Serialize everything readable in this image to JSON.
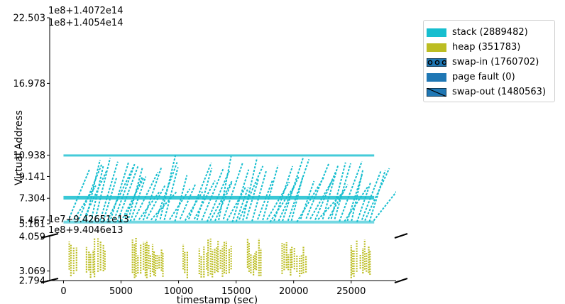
{
  "chart_data": {
    "type": "scatter",
    "xlabel": "timestamp (sec)",
    "ylabel": "Virtual Address",
    "xlim": [
      -1200,
      28900
    ],
    "x_ticks": [
      0,
      5000,
      10000,
      15000,
      20000,
      25000
    ],
    "x_tick_labels": [
      "0",
      "5000",
      "10000",
      "15000",
      "20000",
      "25000"
    ],
    "upper_panel": {
      "offset_labels": [
        "1e8+1.4072e14",
        "1e8+1.4054e14"
      ],
      "tick_labels": [
        "22.503",
        "16.978",
        "10.938",
        "9.141",
        "7.304",
        "5.467",
        "5.161"
      ],
      "tick_values": [
        22.503,
        16.978,
        10.938,
        9.141,
        7.304,
        5.467,
        5.161
      ],
      "ylim": [
        5.161,
        22.503
      ],
      "series": [
        {
          "name": "stack",
          "color": "#17becf",
          "segments": [
            [
              5.3,
              10.938
            ],
            [
              7.2,
              7.5
            ]
          ]
        }
      ]
    },
    "lower_panel": {
      "offset_labels": [
        "1e7+9.42651e13",
        "1e8+9.4046e13"
      ],
      "tick_labels": [
        "4.059",
        "3.069",
        "2.794"
      ],
      "tick_values": [
        4.059,
        3.069,
        2.794
      ],
      "ylim": [
        2.794,
        4.059
      ],
      "series": [
        {
          "name": "heap",
          "color": "#bcbd22",
          "bursts": [
            [
              500,
              1200
            ],
            [
              2000,
              2700
            ],
            [
              3000,
              3700
            ],
            [
              6000,
              8700
            ],
            [
              10400,
              10800
            ],
            [
              11800,
              14700
            ],
            [
              16000,
              17200
            ],
            [
              19000,
              21200
            ],
            [
              25000,
              25600
            ],
            [
              25800,
              26800
            ]
          ]
        }
      ]
    },
    "legend": {
      "placement": "outside-right",
      "entries": [
        {
          "label": "stack (2889482)",
          "color": "#17becf",
          "style": "solid"
        },
        {
          "label": "heap (351783)",
          "color": "#bcbd22",
          "style": "solid"
        },
        {
          "label": "swap-in (1760702)",
          "color": "#1f77b4",
          "style": "circles"
        },
        {
          "label": "page fault (0)",
          "color": "#1f77b4",
          "style": "solid"
        },
        {
          "label": "swap-out (1480563)",
          "color": "#1f77b4",
          "style": "hatch"
        }
      ]
    }
  }
}
